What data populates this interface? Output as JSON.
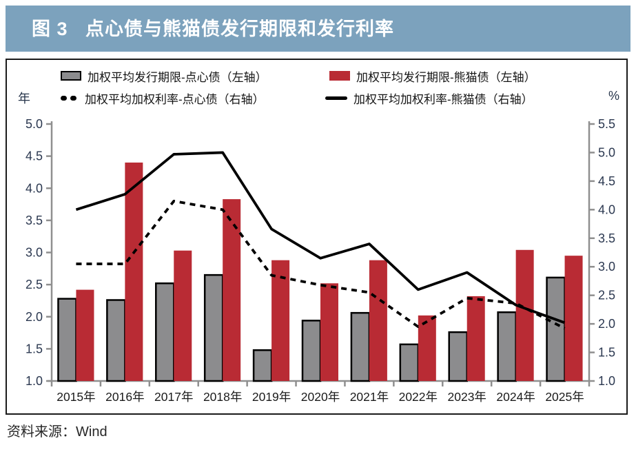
{
  "header": {
    "title": "图 3   点心债与熊猫债发行期限和发行利率"
  },
  "footer": {
    "source": "资料来源：Wind"
  },
  "colors": {
    "header_bg": "#7ca2bd",
    "bar_gray": "#8c8c8e",
    "bar_red": "#b92b34",
    "line_black": "#000000",
    "axis_line": "#8f8f8f",
    "tick_label": "#2b3850",
    "category_label": "#1a1a1a"
  },
  "chart_data": {
    "type": "bar",
    "title": "点心债与熊猫债发行期限和发行利率",
    "categories": [
      "2015年",
      "2016年",
      "2017年",
      "2018年",
      "2019年",
      "2020年",
      "2021年",
      "2022年",
      "2023年",
      "2024年",
      "2025年"
    ],
    "left_axis": {
      "unit": "年",
      "min": 1.0,
      "max": 5.0,
      "step": 0.5
    },
    "right_axis": {
      "unit": "%",
      "min": 1.0,
      "max": 5.5,
      "step": 0.5
    },
    "grid": false,
    "legend_position": "top",
    "series": [
      {
        "name": "加权平均发行期限-点心债（左轴）",
        "type": "bar",
        "axis": "left",
        "color": "#8c8c8e",
        "values": [
          2.28,
          2.26,
          2.52,
          2.65,
          1.48,
          1.94,
          2.06,
          1.57,
          1.76,
          2.07,
          2.61
        ]
      },
      {
        "name": "加权平均发行期限-熊猫债（左轴）",
        "type": "bar",
        "axis": "left",
        "color": "#b92b34",
        "values": [
          2.42,
          4.4,
          3.03,
          3.83,
          2.88,
          2.52,
          2.88,
          2.02,
          2.32,
          3.04,
          2.95
        ]
      },
      {
        "name": "加权平均加权利率-点心债（右轴）",
        "type": "line",
        "style": "dashed",
        "axis": "right",
        "color": "#000000",
        "values": [
          3.05,
          3.05,
          4.15,
          4.0,
          2.85,
          2.68,
          2.55,
          1.95,
          2.45,
          2.36,
          1.92
        ]
      },
      {
        "name": "加权平均加权利率-熊猫债（右轴）",
        "type": "line",
        "style": "solid",
        "axis": "right",
        "color": "#000000",
        "values": [
          4.0,
          4.27,
          4.97,
          5.0,
          3.66,
          3.15,
          3.4,
          2.6,
          2.9,
          2.33,
          2.02
        ]
      }
    ]
  }
}
